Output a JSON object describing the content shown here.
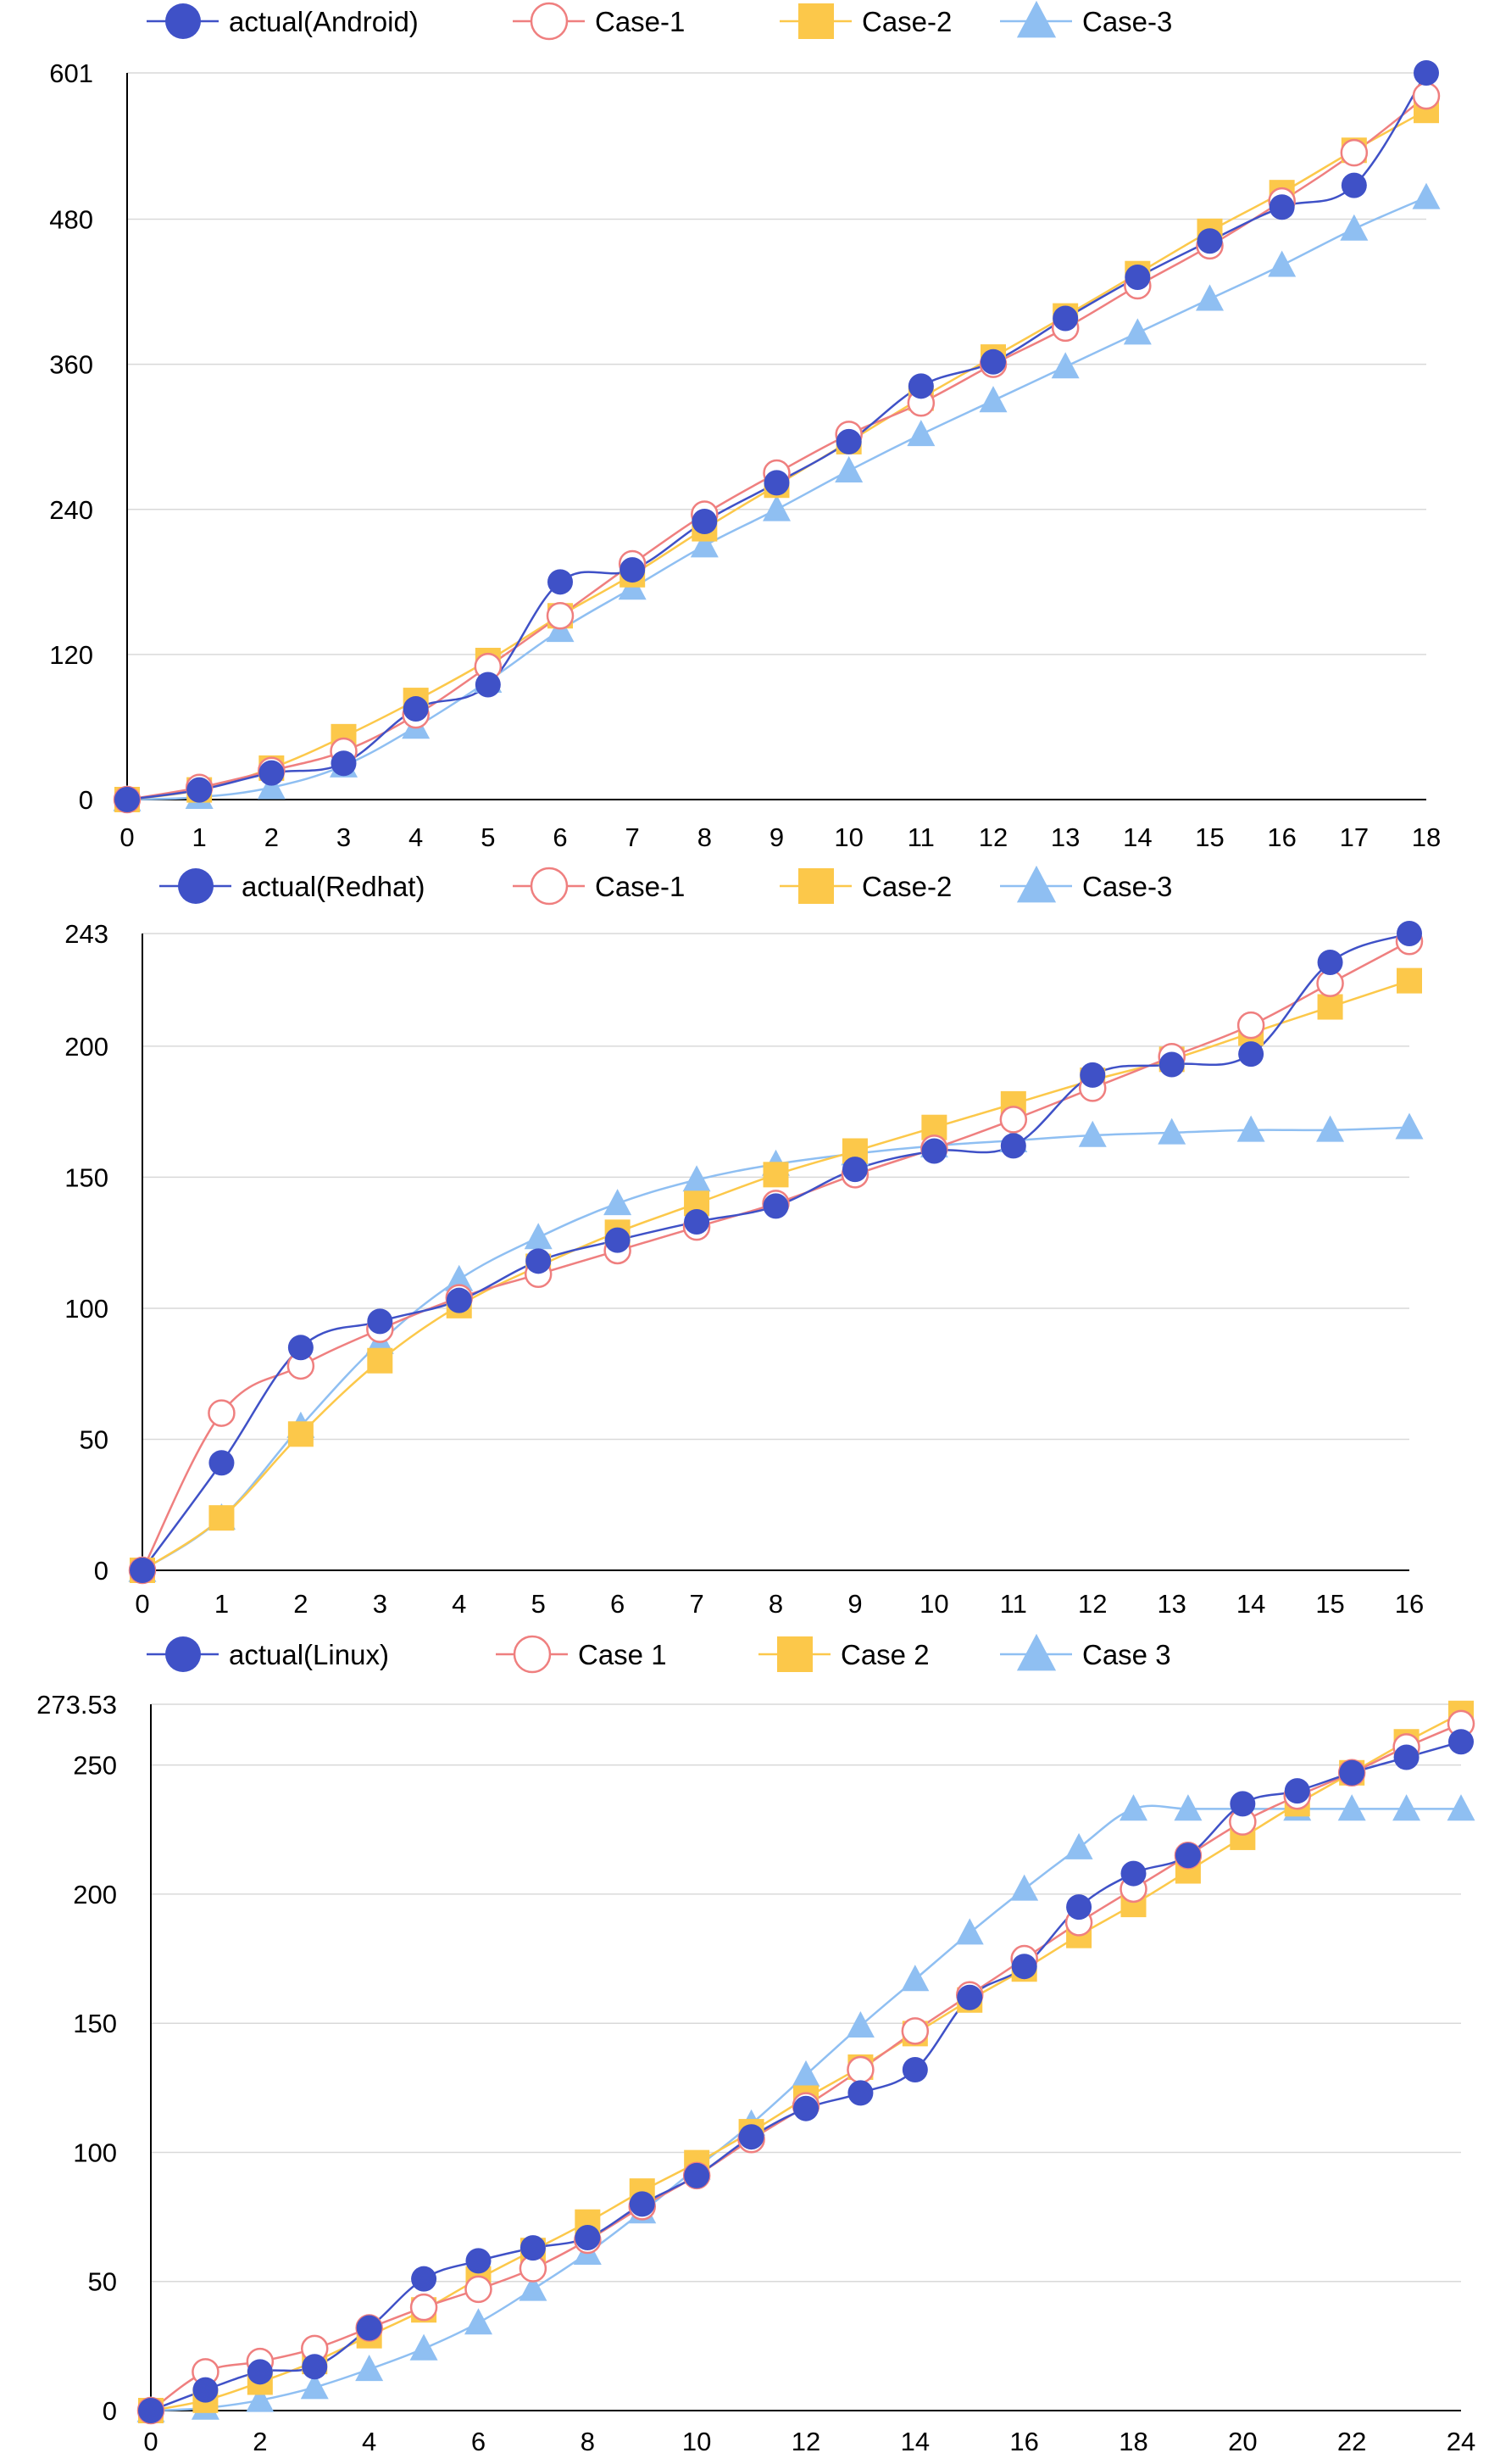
{
  "colors": {
    "actual": "#3f51c7",
    "case1": "#ef7f7f",
    "case2": "#fcc84a",
    "case3": "#8fbff2",
    "grid": "#d9d9d9"
  },
  "chart_data": [
    {
      "type": "line",
      "title": "",
      "xlabel": "",
      "ylabel": "",
      "x": [
        0,
        1,
        2,
        3,
        4,
        5,
        6,
        7,
        8,
        9,
        10,
        11,
        12,
        13,
        14,
        15,
        16,
        17,
        18
      ],
      "xticks": [
        0,
        1,
        2,
        3,
        4,
        5,
        6,
        7,
        8,
        9,
        10,
        11,
        12,
        13,
        14,
        15,
        16,
        17,
        18
      ],
      "yticks": [
        0,
        120,
        240,
        360,
        480,
        601
      ],
      "ytick_labels": [
        "0",
        "120",
        "240",
        "360",
        "480",
        "601"
      ],
      "xlim": [
        0,
        18
      ],
      "ylim": [
        0,
        601
      ],
      "legend": "top",
      "series": [
        {
          "name": "actual(Android)",
          "marker": "dot",
          "values": [
            0,
            8,
            22,
            30,
            75,
            95,
            180,
            190,
            230,
            262,
            296,
            342,
            362,
            398,
            432,
            462,
            490,
            508,
            601
          ]
        },
        {
          "name": "Case-1",
          "marker": "circle",
          "values": [
            0,
            10,
            24,
            40,
            70,
            110,
            152,
            195,
            236,
            270,
            302,
            328,
            360,
            390,
            425,
            458,
            495,
            535,
            582
          ]
        },
        {
          "name": "Case-2",
          "marker": "square",
          "values": [
            0,
            8,
            26,
            52,
            82,
            115,
            152,
            186,
            224,
            260,
            296,
            332,
            366,
            400,
            435,
            470,
            502,
            537,
            570
          ]
        },
        {
          "name": "Case-3",
          "marker": "triangle",
          "values": [
            0,
            2,
            10,
            28,
            60,
            98,
            140,
            175,
            210,
            240,
            272,
            302,
            330,
            358,
            386,
            414,
            442,
            472,
            498
          ]
        }
      ]
    },
    {
      "type": "line",
      "title": "",
      "xlabel": "",
      "ylabel": "",
      "x": [
        0,
        1,
        2,
        3,
        4,
        5,
        6,
        7,
        8,
        9,
        10,
        11,
        12,
        13,
        14,
        15,
        16
      ],
      "xticks": [
        0,
        1,
        2,
        3,
        4,
        5,
        6,
        7,
        8,
        9,
        10,
        11,
        12,
        13,
        14,
        15,
        16
      ],
      "yticks": [
        0,
        50,
        100,
        150,
        200,
        243
      ],
      "ytick_labels": [
        "0",
        "50",
        "100",
        "150",
        "200",
        "243"
      ],
      "xlim": [
        0,
        16
      ],
      "ylim": [
        0,
        243
      ],
      "legend": "top",
      "series": [
        {
          "name": "actual(Redhat)",
          "marker": "dot",
          "values": [
            0,
            41,
            85,
            95,
            103,
            118,
            126,
            133,
            139,
            153,
            160,
            162,
            189,
            193,
            197,
            232,
            243
          ]
        },
        {
          "name": "Case-1",
          "marker": "circle",
          "values": [
            0,
            60,
            78,
            92,
            104,
            113,
            122,
            131,
            140,
            151,
            161,
            172,
            184,
            196,
            208,
            224,
            240
          ]
        },
        {
          "name": "Case-2",
          "marker": "square",
          "values": [
            0,
            20,
            52,
            80,
            101,
            116,
            129,
            140,
            151,
            160,
            169,
            178,
            187,
            195,
            205,
            215,
            225
          ]
        },
        {
          "name": "Case-3",
          "marker": "triangle",
          "values": [
            0,
            20,
            55,
            87,
            111,
            127,
            140,
            149,
            155,
            159,
            162,
            164,
            166,
            167,
            168,
            168,
            169
          ]
        }
      ]
    },
    {
      "type": "line",
      "title": "",
      "xlabel": "",
      "ylabel": "",
      "x": [
        0,
        1,
        2,
        3,
        4,
        5,
        6,
        7,
        8,
        9,
        10,
        11,
        12,
        13,
        14,
        15,
        16,
        17,
        18,
        19,
        20,
        21,
        22,
        23,
        24
      ],
      "xticks": [
        0,
        2,
        4,
        6,
        8,
        10,
        12,
        14,
        16,
        18,
        20,
        22,
        24
      ],
      "yticks": [
        0,
        50,
        100,
        150,
        200,
        250,
        273.53
      ],
      "ytick_labels": [
        "0",
        "50",
        "100",
        "150",
        "200",
        "250",
        "273.53"
      ],
      "xlim": [
        0,
        24
      ],
      "ylim": [
        0,
        273.53
      ],
      "legend": "top",
      "series": [
        {
          "name": "actual(Linux)",
          "marker": "dot",
          "values": [
            0,
            8,
            15,
            17,
            32,
            51,
            58,
            63,
            67,
            80,
            91,
            106,
            117,
            123,
            132,
            160,
            172,
            195,
            208,
            215,
            235,
            240,
            247,
            253,
            259
          ]
        },
        {
          "name": "Case 1",
          "marker": "circle",
          "values": [
            0,
            15,
            19,
            24,
            32,
            40,
            47,
            55,
            66,
            79,
            91,
            105,
            118,
            132,
            147,
            161,
            175,
            189,
            202,
            215,
            228,
            238,
            247,
            257,
            266
          ]
        },
        {
          "name": "Case 2",
          "marker": "square",
          "values": [
            0,
            4,
            11,
            19,
            29,
            39,
            51,
            62,
            73,
            85,
            96,
            108,
            121,
            133,
            146,
            159,
            171,
            184,
            196,
            209,
            222,
            235,
            247,
            259,
            270
          ]
        },
        {
          "name": "Case 3",
          "marker": "triangle",
          "values": [
            0,
            1,
            4,
            9,
            16,
            24,
            34,
            47,
            61,
            77,
            94,
            111,
            130,
            149,
            167,
            185,
            202,
            218,
            233,
            233,
            233,
            233,
            233,
            233,
            233
          ]
        }
      ]
    }
  ]
}
